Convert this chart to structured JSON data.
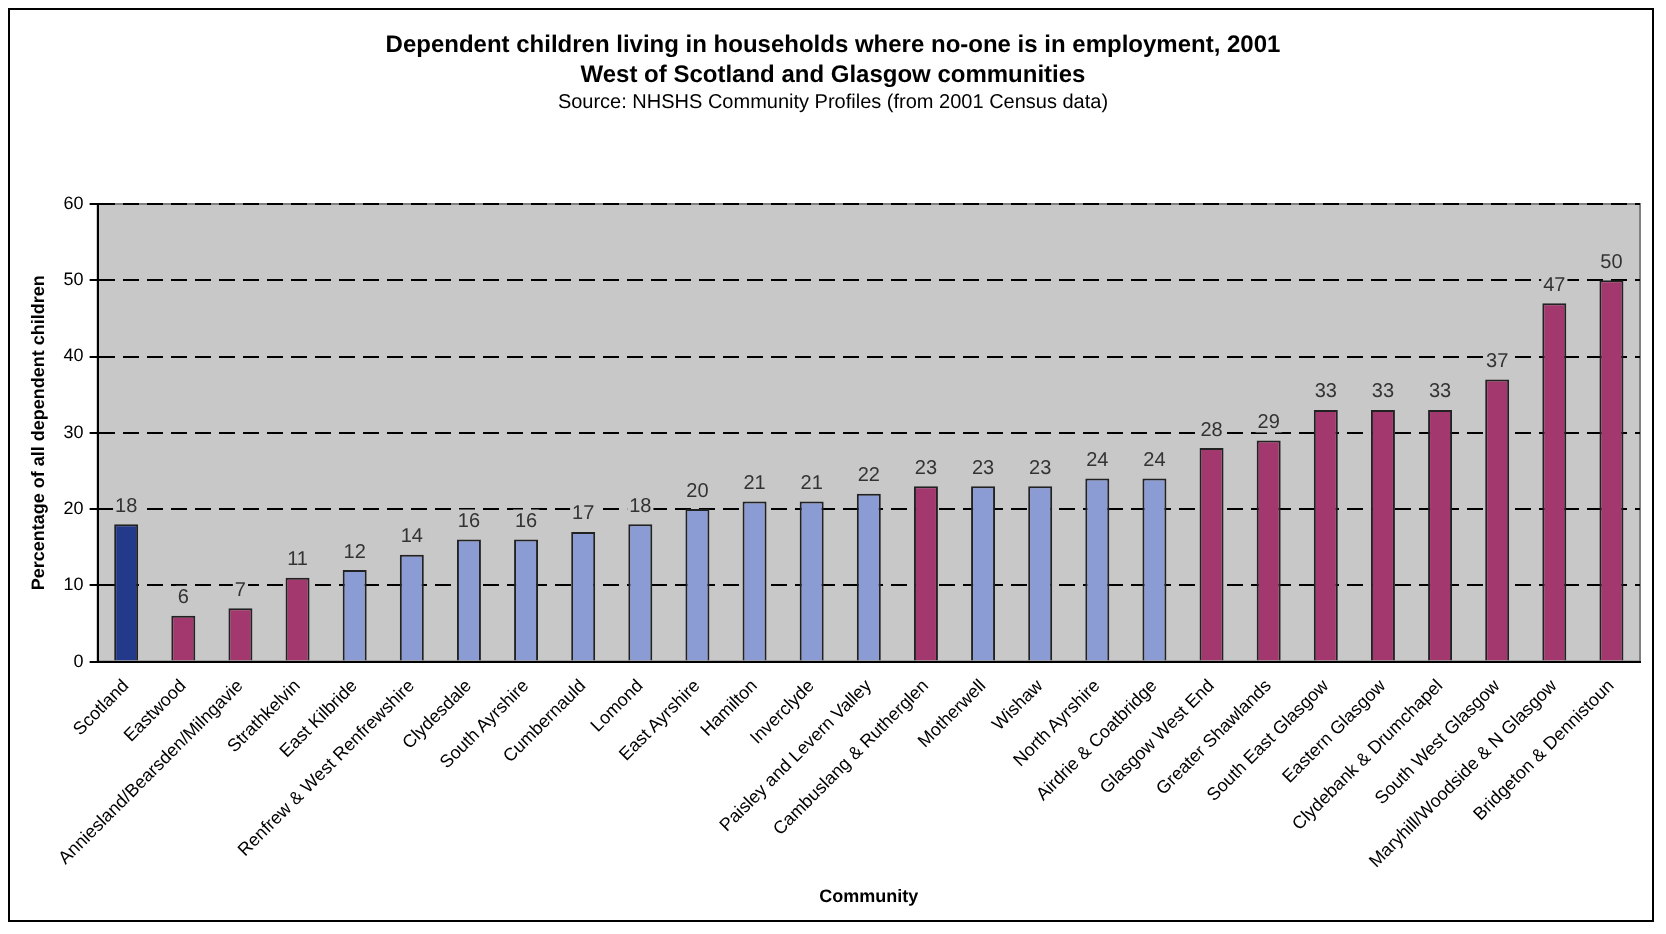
{
  "chart_data": {
    "type": "bar",
    "title": "Dependent children living in households where no-one is in employment, 2001",
    "subtitle": "West of Scotland and Glasgow communities",
    "annotations": [
      "Source: NHSHS Community Profiles (from 2001 Census data)"
    ],
    "xlabel": "Community",
    "ylabel": "Percentage of all dependent children",
    "categories": [
      "Scotland",
      "Eastwood",
      "Anniesland/Bearsden/Milngavie",
      "Strathkelvin",
      "East Kilbride",
      "Renfrew & West Renfrewshire",
      "Clydesdale",
      "South Ayrshire",
      "Cumbernauld",
      "Lomond",
      "East Ayrshire",
      "Hamilton",
      "Inverclyde",
      "Paisley and Levern Valley",
      "Cambuslang & Rutherglen",
      "Motherwell",
      "Wishaw",
      "North Ayrshire",
      "Airdrie & Coatbridge",
      "Glasgow West End",
      "Greater Shawlands",
      "South East Glasgow",
      "Eastern Glasgow",
      "Clydebank & Drumchapel",
      "South West Glasgow",
      "Maryhill/Woodside & N Glasgow",
      "Bridgeton & Dennistoun"
    ],
    "values": [
      18,
      6,
      7,
      11,
      12,
      14,
      16,
      16,
      17,
      18,
      20,
      21,
      21,
      22,
      23,
      23,
      23,
      24,
      24,
      28,
      29,
      33,
      33,
      33,
      37,
      47,
      50
    ],
    "colors": [
      "#233a8a",
      "#a3386f",
      "#a3386f",
      "#a3386f",
      "#8b9bd4",
      "#8b9bd4",
      "#8b9bd4",
      "#8b9bd4",
      "#8b9bd4",
      "#8b9bd4",
      "#8b9bd4",
      "#8b9bd4",
      "#8b9bd4",
      "#8b9bd4",
      "#a3386f",
      "#8b9bd4",
      "#8b9bd4",
      "#8b9bd4",
      "#8b9bd4",
      "#a3386f",
      "#a3386f",
      "#a3386f",
      "#a3386f",
      "#a3386f",
      "#a3386f",
      "#a3386f",
      "#a3386f"
    ],
    "ylim": [
      0,
      60
    ],
    "yticks": [
      0,
      10,
      20,
      30,
      40,
      50,
      60
    ],
    "grid": "y",
    "data_labels": true,
    "legend": false
  }
}
